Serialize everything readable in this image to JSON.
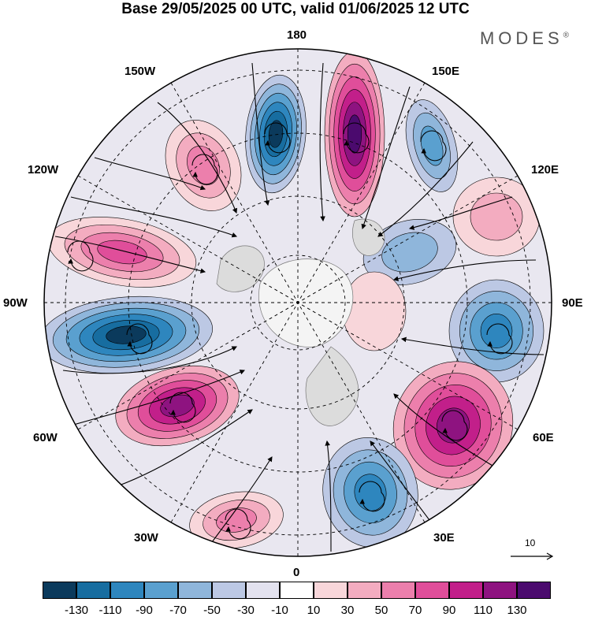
{
  "title": "Base 29/05/2025 00 UTC, valid 01/06/2025 12 UTC",
  "brand": "MODES",
  "brand_mark": "®",
  "longitude_labels": {
    "lon_180": "180",
    "lon_150w": "150W",
    "lon_150e": "150E",
    "lon_120w": "120W",
    "lon_120e": "120E",
    "lon_90w": "90W",
    "lon_90e": "90E",
    "lon_60w": "60W",
    "lon_60e": "60E",
    "lon_30w": "30W",
    "lon_30e": "30E",
    "lon_0": "0"
  },
  "legend": {
    "ticks": [
      "-130",
      "-110",
      "-90",
      "-70",
      "-50",
      "-30",
      "-10",
      "10",
      "30",
      "50",
      "70",
      "90",
      "110",
      "130"
    ],
    "colors": [
      "#0b3a5c",
      "#176da0",
      "#2e86be",
      "#5aa0cf",
      "#8fb6db",
      "#bcc8e4",
      "#e3e2ef",
      "#ffffff",
      "#f8d6da",
      "#f3acc0",
      "#ec7fac",
      "#e04e9a",
      "#c21f8a",
      "#8e1380",
      "#4b0a6e"
    ]
  },
  "reference_vector": {
    "label": "10"
  }
}
